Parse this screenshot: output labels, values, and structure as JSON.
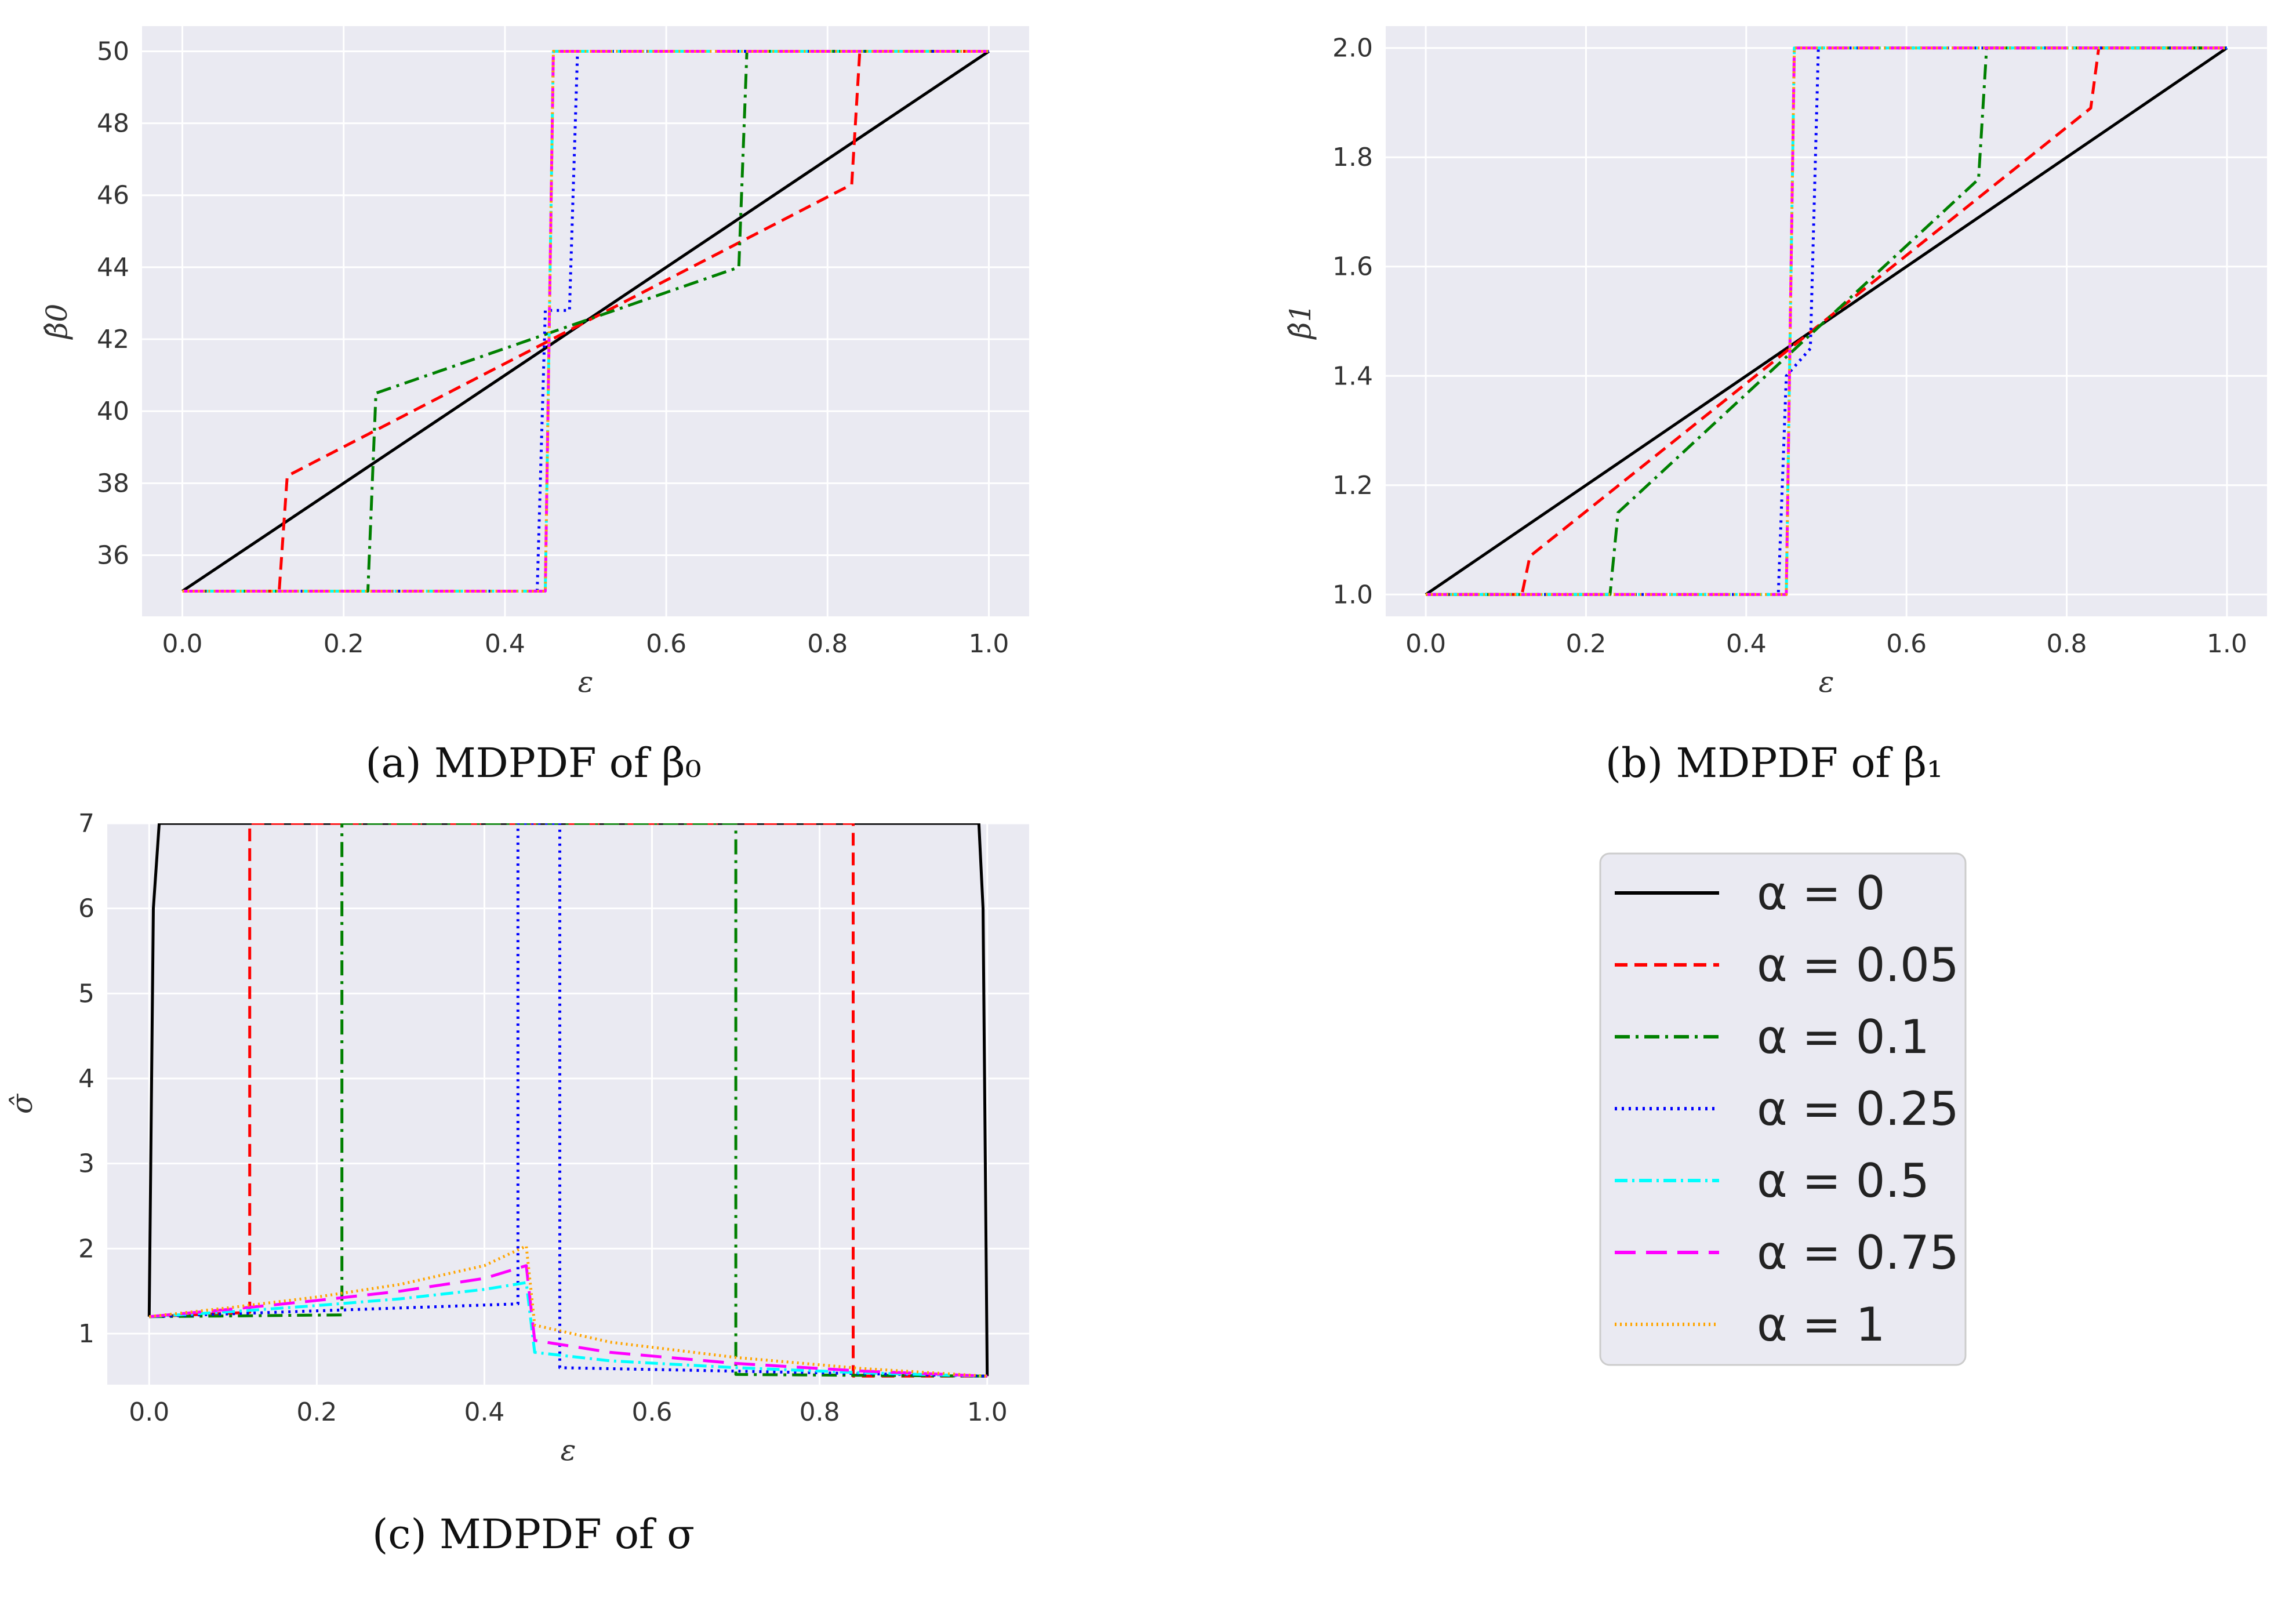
{
  "figure": {
    "panels": [
      {
        "caption": "(a) MDPDF of β₀"
      },
      {
        "caption": "(b) MDPDF of β₁"
      },
      {
        "caption": "(c) MDPDF of σ"
      }
    ]
  },
  "legend": {
    "entries": [
      "α = 0",
      "α = 0.05",
      "α = 0.1",
      "α = 0.25",
      "α = 0.5",
      "α = 0.75",
      "α = 1"
    ]
  },
  "series_styles": [
    {
      "label": "α = 0",
      "color": "#000000",
      "dash": ""
    },
    {
      "label": "α = 0.05",
      "color": "#ff0000",
      "dash": "22 12"
    },
    {
      "label": "α = 0.1",
      "color": "#008000",
      "dash": "26 10 5 10"
    },
    {
      "label": "α = 0.25",
      "color": "#0000ff",
      "dash": "4 8"
    },
    {
      "label": "α = 0.5",
      "color": "#00ffff",
      "dash": "22 8 4 8"
    },
    {
      "label": "α = 0.75",
      "color": "#ff00ff",
      "dash": "36 18"
    },
    {
      "label": "α = 1",
      "color": "#ffa500",
      "dash": "3 6"
    }
  ],
  "chart_data": [
    {
      "type": "line",
      "title": "",
      "xlabel": "ε",
      "ylabel": "β̂0",
      "xlim": [
        -0.05,
        1.05
      ],
      "ylim": [
        34.3,
        50.7
      ],
      "xticks": [
        "0.0",
        "0.2",
        "0.4",
        "0.6",
        "0.8",
        "1.0"
      ],
      "yticks": [
        "36",
        "38",
        "40",
        "42",
        "44",
        "46",
        "48",
        "50"
      ],
      "grid": true,
      "series": [
        {
          "name": "α = 0",
          "x": [
            0,
            1
          ],
          "y": [
            35,
            50
          ]
        },
        {
          "name": "α = 0.05",
          "x": [
            0,
            0.12,
            0.13,
            0.83,
            0.84,
            1
          ],
          "y": [
            35,
            35,
            38.2,
            46.3,
            50,
            50
          ]
        },
        {
          "name": "α = 0.1",
          "x": [
            0,
            0.23,
            0.24,
            0.69,
            0.7,
            1
          ],
          "y": [
            35,
            35,
            40.5,
            44.0,
            50,
            50
          ]
        },
        {
          "name": "α = 0.25",
          "x": [
            0,
            0.44,
            0.45,
            0.48,
            0.49,
            1
          ],
          "y": [
            35,
            35,
            42.8,
            42.8,
            50,
            50
          ]
        },
        {
          "name": "α = 0.5",
          "x": [
            0,
            0.45,
            0.46,
            1
          ],
          "y": [
            35,
            35,
            50,
            50
          ]
        },
        {
          "name": "α = 0.75",
          "x": [
            0,
            0.45,
            0.46,
            1
          ],
          "y": [
            35,
            35,
            50,
            50
          ]
        },
        {
          "name": "α = 1",
          "x": [
            0,
            0.45,
            0.46,
            1
          ],
          "y": [
            35,
            35,
            50,
            50
          ]
        }
      ]
    },
    {
      "type": "line",
      "title": "",
      "xlabel": "ε",
      "ylabel": "β̂1",
      "xlim": [
        -0.05,
        1.05
      ],
      "ylim": [
        0.96,
        2.04
      ],
      "xticks": [
        "0.0",
        "0.2",
        "0.4",
        "0.6",
        "0.8",
        "1.0"
      ],
      "yticks": [
        "1.0",
        "1.2",
        "1.4",
        "1.6",
        "1.8",
        "2.0"
      ],
      "grid": true,
      "series": [
        {
          "name": "α = 0",
          "x": [
            0,
            1
          ],
          "y": [
            1.0,
            2.0
          ]
        },
        {
          "name": "α = 0.05",
          "x": [
            0,
            0.12,
            0.13,
            0.83,
            0.84,
            1
          ],
          "y": [
            1.0,
            1.0,
            1.07,
            1.89,
            2.0,
            2.0
          ]
        },
        {
          "name": "α = 0.1",
          "x": [
            0,
            0.23,
            0.24,
            0.69,
            0.7,
            1
          ],
          "y": [
            1.0,
            1.0,
            1.15,
            1.76,
            2.0,
            2.0
          ]
        },
        {
          "name": "α = 0.25",
          "x": [
            0,
            0.44,
            0.45,
            0.48,
            0.49,
            1
          ],
          "y": [
            1.0,
            1.0,
            1.4,
            1.45,
            2.0,
            2.0
          ]
        },
        {
          "name": "α = 0.5",
          "x": [
            0,
            0.45,
            0.46,
            1
          ],
          "y": [
            1.0,
            1.0,
            2.0,
            2.0
          ]
        },
        {
          "name": "α = 0.75",
          "x": [
            0,
            0.45,
            0.46,
            1
          ],
          "y": [
            1.0,
            1.0,
            2.0,
            2.0
          ]
        },
        {
          "name": "α = 1",
          "x": [
            0,
            0.45,
            0.46,
            1
          ],
          "y": [
            1.0,
            1.0,
            2.0,
            2.0
          ]
        }
      ]
    },
    {
      "type": "line",
      "title": "",
      "xlabel": "ε",
      "ylabel": "σ̂",
      "xlim": [
        -0.05,
        1.05
      ],
      "ylim": [
        0.4,
        7.0
      ],
      "xticks": [
        "0.0",
        "0.2",
        "0.4",
        "0.6",
        "0.8",
        "1.0"
      ],
      "yticks": [
        "1",
        "2",
        "3",
        "4",
        "5",
        "6",
        "7"
      ],
      "grid": true,
      "series": [
        {
          "name": "α = 0",
          "x": [
            0,
            0.005,
            0.012,
            0.99,
            0.995,
            1.0
          ],
          "y": [
            1.2,
            6.0,
            7.0,
            7.0,
            6.0,
            0.5
          ]
        },
        {
          "name": "α = 0.05",
          "x": [
            0,
            0.12,
            0.12,
            0.84,
            0.84,
            1.0
          ],
          "y": [
            1.2,
            1.25,
            7.0,
            7.0,
            0.5,
            0.5
          ]
        },
        {
          "name": "α = 0.1",
          "x": [
            0,
            0.23,
            0.23,
            0.7,
            0.7,
            1.0
          ],
          "y": [
            1.2,
            1.22,
            7.0,
            7.0,
            0.52,
            0.5
          ]
        },
        {
          "name": "α = 0.25",
          "x": [
            0,
            0.44,
            0.44,
            0.49,
            0.49,
            1.0
          ],
          "y": [
            1.2,
            1.35,
            7.0,
            7.0,
            0.6,
            0.5
          ]
        },
        {
          "name": "α = 0.5",
          "x": [
            0,
            0.1,
            0.2,
            0.3,
            0.4,
            0.45,
            0.46,
            0.55,
            0.7,
            0.85,
            1.0
          ],
          "y": [
            1.2,
            1.26,
            1.33,
            1.41,
            1.52,
            1.6,
            0.78,
            0.68,
            0.6,
            0.54,
            0.5
          ]
        },
        {
          "name": "α = 0.75",
          "x": [
            0,
            0.1,
            0.2,
            0.3,
            0.4,
            0.45,
            0.46,
            0.55,
            0.7,
            0.85,
            1.0
          ],
          "y": [
            1.2,
            1.29,
            1.39,
            1.5,
            1.65,
            1.8,
            0.92,
            0.78,
            0.65,
            0.56,
            0.5
          ]
        },
        {
          "name": "α = 1",
          "x": [
            0,
            0.1,
            0.2,
            0.3,
            0.4,
            0.45,
            0.46,
            0.55,
            0.7,
            0.85,
            1.0
          ],
          "y": [
            1.2,
            1.31,
            1.43,
            1.58,
            1.8,
            2.03,
            1.1,
            0.9,
            0.72,
            0.59,
            0.5
          ]
        }
      ]
    }
  ]
}
